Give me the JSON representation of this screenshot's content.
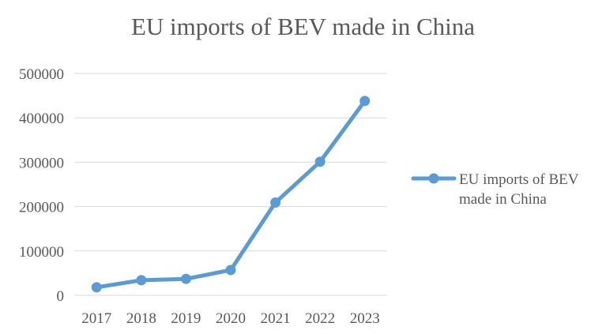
{
  "chart_data": {
    "type": "line",
    "title": "EU imports of BEV made in China",
    "xlabel": "",
    "ylabel": "",
    "categories": [
      "2017",
      "2018",
      "2019",
      "2020",
      "2021",
      "2022",
      "2023"
    ],
    "series": [
      {
        "name": "EU imports of BEV made in China",
        "values": [
          18000,
          34000,
          37000,
          57000,
          209000,
          301000,
          438000
        ]
      }
    ],
    "ylim": [
      0,
      500000
    ],
    "yticks": [
      "0",
      "100000",
      "200000",
      "300000",
      "400000",
      "500000"
    ],
    "grid": true,
    "legend_position": "right",
    "colors": {
      "series": "#5b9bd5",
      "grid": "#d9d9d9",
      "text": "#595959"
    }
  }
}
